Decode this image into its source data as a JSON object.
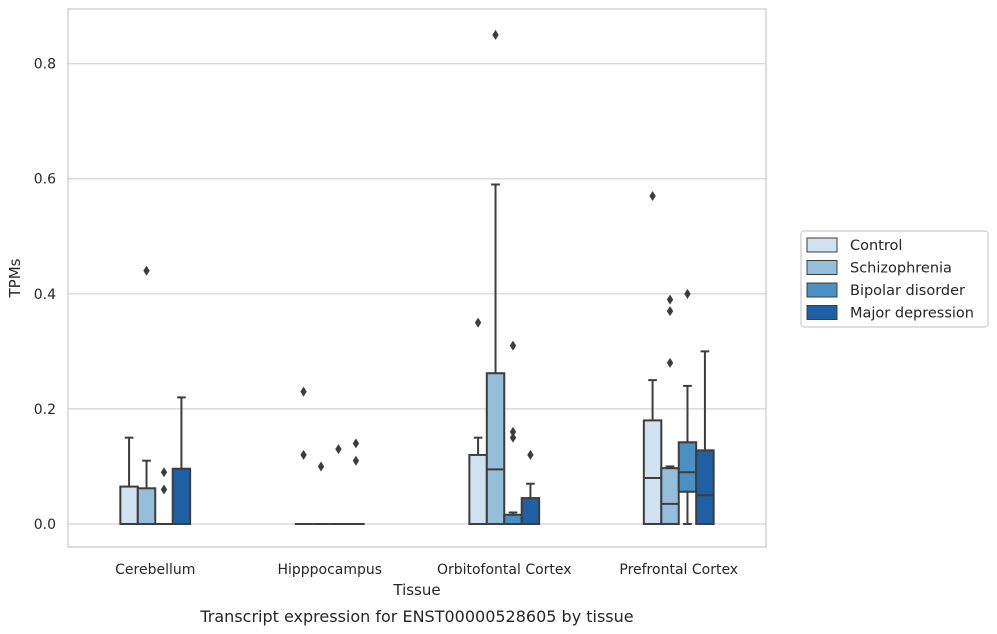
{
  "caption": "Transcript expression for ENST00000528605 by tissue",
  "chart_data": {
    "type": "box",
    "xlabel": "Tissue",
    "ylabel": "TPMs",
    "ylim": [
      -0.04,
      0.895
    ],
    "yticks": [
      0.0,
      0.2,
      0.4,
      0.6,
      0.8
    ],
    "ytick_labels": [
      "0.0",
      "0.2",
      "0.4",
      "0.6",
      "0.8"
    ],
    "grid": "horizontal",
    "legend_position": "right",
    "categories": [
      "Cerebellum",
      "Hipppocampus",
      "Orbitofontal Cortex",
      "Prefrontal Cortex"
    ],
    "series": [
      {
        "name": "Control",
        "color": "#d0e1f0",
        "boxes": [
          {
            "q1": 0.0,
            "median": 0.0,
            "q3": 0.065,
            "whisker_low": 0.0,
            "whisker_high": 0.15,
            "outliers": []
          },
          {
            "q1": 0.0,
            "median": 0.0,
            "q3": 0.0,
            "whisker_low": 0.0,
            "whisker_high": 0.0,
            "outliers": [
              0.23,
              0.12
            ]
          },
          {
            "q1": 0.0,
            "median": 0.0,
            "q3": 0.12,
            "whisker_low": 0.0,
            "whisker_high": 0.15,
            "outliers": [
              0.35
            ]
          },
          {
            "q1": 0.0,
            "median": 0.08,
            "q3": 0.18,
            "whisker_low": 0.0,
            "whisker_high": 0.25,
            "outliers": [
              0.57
            ]
          }
        ]
      },
      {
        "name": "Schizophrenia",
        "color": "#94bed9",
        "boxes": [
          {
            "q1": 0.0,
            "median": 0.0,
            "q3": 0.062,
            "whisker_low": 0.0,
            "whisker_high": 0.11,
            "outliers": [
              0.44
            ]
          },
          {
            "q1": 0.0,
            "median": 0.0,
            "q3": 0.0,
            "whisker_low": 0.0,
            "whisker_high": 0.0,
            "outliers": [
              0.1
            ]
          },
          {
            "q1": 0.0,
            "median": 0.095,
            "q3": 0.262,
            "whisker_low": 0.0,
            "whisker_high": 0.59,
            "outliers": [
              0.85
            ]
          },
          {
            "q1": 0.0,
            "median": 0.035,
            "q3": 0.097,
            "whisker_low": 0.0,
            "whisker_high": 0.1,
            "outliers": [
              0.39,
              0.37,
              0.28
            ]
          }
        ]
      },
      {
        "name": "Bipolar disorder",
        "color": "#4a90c2",
        "boxes": [
          {
            "q1": 0.0,
            "median": 0.0,
            "q3": 0.0,
            "whisker_low": 0.0,
            "whisker_high": 0.0,
            "outliers": [
              0.09,
              0.06
            ]
          },
          {
            "q1": 0.0,
            "median": 0.0,
            "q3": 0.0,
            "whisker_low": 0.0,
            "whisker_high": 0.0,
            "outliers": [
              0.13
            ]
          },
          {
            "q1": 0.0,
            "median": 0.0,
            "q3": 0.016,
            "whisker_low": 0.0,
            "whisker_high": 0.02,
            "outliers": [
              0.31,
              0.16,
              0.15
            ]
          },
          {
            "q1": 0.056,
            "median": 0.09,
            "q3": 0.142,
            "whisker_low": 0.0,
            "whisker_high": 0.24,
            "outliers": [
              0.4
            ]
          }
        ]
      },
      {
        "name": "Major depression",
        "color": "#1f60a5",
        "boxes": [
          {
            "q1": 0.0,
            "median": 0.0,
            "q3": 0.096,
            "whisker_low": 0.0,
            "whisker_high": 0.22,
            "outliers": []
          },
          {
            "q1": 0.0,
            "median": 0.0,
            "q3": 0.0,
            "whisker_low": 0.0,
            "whisker_high": 0.0,
            "outliers": [
              0.14,
              0.11
            ]
          },
          {
            "q1": 0.0,
            "median": 0.0,
            "q3": 0.045,
            "whisker_low": 0.0,
            "whisker_high": 0.07,
            "outliers": [
              0.12
            ]
          },
          {
            "q1": 0.0,
            "median": 0.05,
            "q3": 0.128,
            "whisker_low": 0.0,
            "whisker_high": 0.3,
            "outliers": []
          }
        ]
      }
    ]
  }
}
